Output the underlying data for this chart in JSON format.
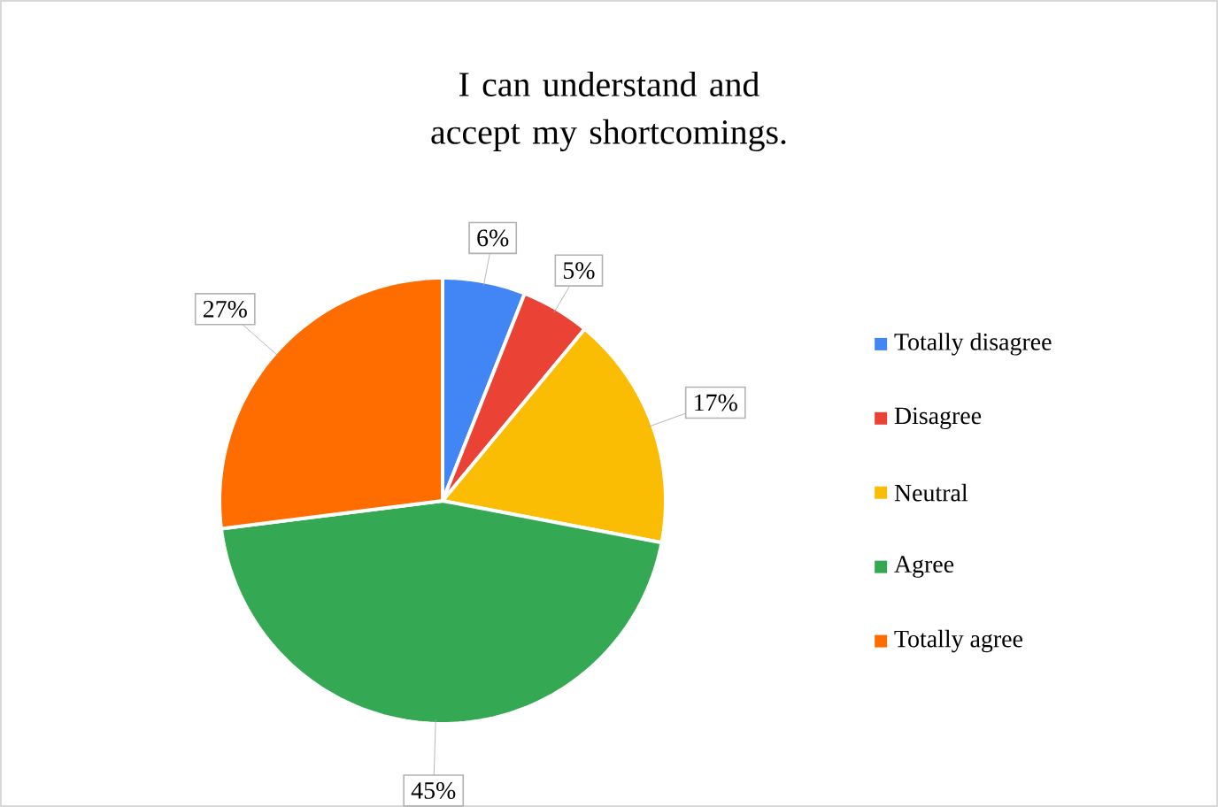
{
  "chart_data": {
    "type": "pie",
    "title": "I can understand and accept my shortcomings.",
    "categories": [
      "Totally disagree",
      "Disagree",
      "Neutral",
      "Agree",
      "Totally agree"
    ],
    "values": [
      6,
      5,
      17,
      45,
      27
    ],
    "value_labels": [
      "6%",
      "5%",
      "17%",
      "45%",
      "27%"
    ],
    "colors": [
      "#4285f4",
      "#ea4335",
      "#fbbc04",
      "#34a853",
      "#ff6d01"
    ],
    "legend": "right"
  }
}
